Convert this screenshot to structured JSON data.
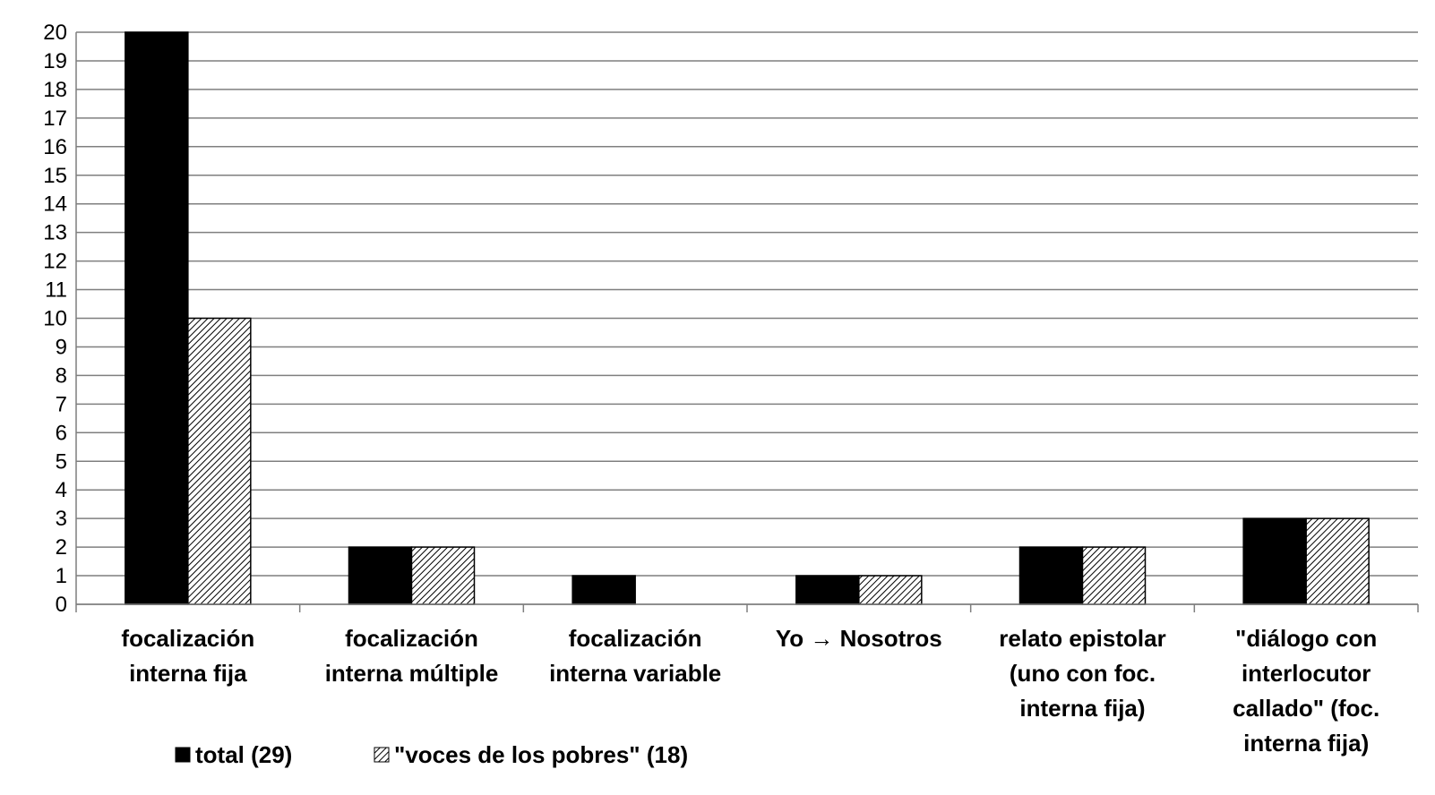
{
  "chart_data": {
    "type": "bar",
    "categories": [
      [
        "focalización",
        "interna fija"
      ],
      [
        "focalización",
        "interna múltiple"
      ],
      [
        "focalización",
        "interna variable"
      ],
      [
        "Yo → Nosotros"
      ],
      [
        "relato epistolar",
        "(uno con foc.",
        "interna fija)"
      ],
      [
        "\"diálogo con",
        "interlocutor",
        "callado\" (foc.",
        "interna fija)"
      ]
    ],
    "series": [
      {
        "name": "total (29)",
        "values": [
          20,
          2,
          1,
          1,
          2,
          3
        ],
        "fill": "#000000"
      },
      {
        "name": "\"voces de los pobres\" (18)",
        "values": [
          10,
          2,
          0,
          1,
          2,
          3
        ],
        "fill": "hatch"
      }
    ],
    "ylim": [
      0,
      20
    ],
    "yticks": [
      0,
      1,
      2,
      3,
      4,
      5,
      6,
      7,
      8,
      9,
      10,
      11,
      12,
      13,
      14,
      15,
      16,
      17,
      18,
      19,
      20
    ],
    "grid": true,
    "legend": "bottom-left",
    "title": "",
    "xlabel": "",
    "ylabel": ""
  }
}
